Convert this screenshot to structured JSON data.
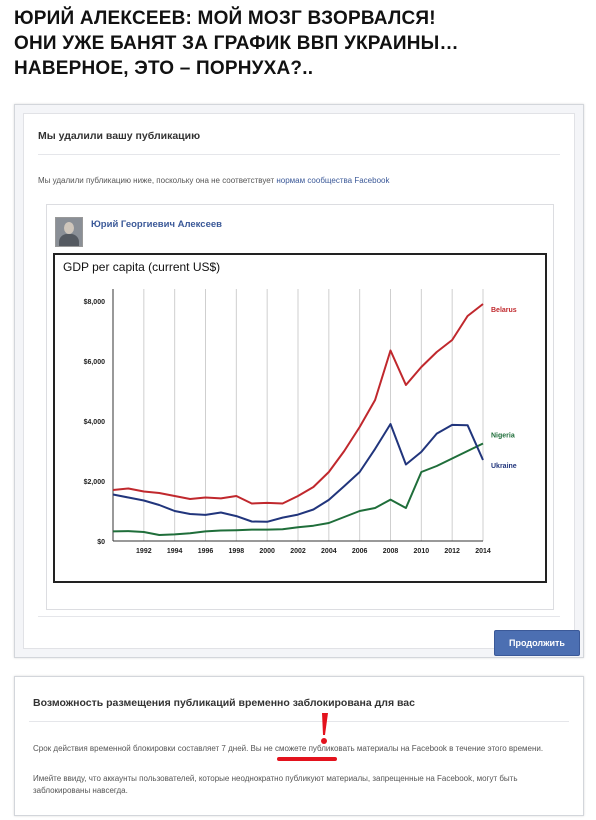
{
  "headline": {
    "line1": "ЮРИЙ АЛЕКСЕЕВ: МОЙ МОЗГ ВЗОРВАЛСЯ!",
    "line2": "ОНИ УЖЕ БАНЯТ ЗА ГРАФИК ВВП УКРАИНЫ…",
    "line3": "НАВЕРНОЕ, ЭТО – ПОРНУХА?.."
  },
  "removed_panel": {
    "title": "Мы удалили вашу публикацию",
    "description": "Мы удалили публикацию ниже, поскольку она не соответствует",
    "description_link": "нормам сообщества Facebook",
    "continue_button": "Продолжить"
  },
  "post": {
    "author": "Юрий Георгиевич Алексеев"
  },
  "chart_data": {
    "type": "line",
    "title": "GDP per capita (current US$)",
    "x": [
      1990,
      1991,
      1992,
      1993,
      1994,
      1995,
      1996,
      1997,
      1998,
      1999,
      2000,
      2001,
      2002,
      2003,
      2004,
      2005,
      2006,
      2007,
      2008,
      2009,
      2010,
      2011,
      2012,
      2013,
      2014
    ],
    "x_ticks": [
      "1992",
      "1994",
      "1996",
      "1998",
      "2000",
      "2002",
      "2004",
      "2006",
      "2008",
      "2010",
      "2012",
      "2014"
    ],
    "y_ticks": [
      "$0",
      "$2,000",
      "$4,000",
      "$6,000",
      "$8,000"
    ],
    "ylim": [
      0,
      8400
    ],
    "grid": "vertical",
    "series": [
      {
        "name": "Belarus",
        "color": "#c0282d",
        "values": [
          1700,
          1750,
          1650,
          1600,
          1500,
          1400,
          1450,
          1420,
          1500,
          1250,
          1270,
          1250,
          1500,
          1800,
          2300,
          3000,
          3800,
          4700,
          6350,
          5200,
          5800,
          6300,
          6700,
          7500,
          7900
        ]
      },
      {
        "name": "Nigeria",
        "color": "#1f6e3a",
        "values": [
          320,
          330,
          300,
          200,
          220,
          260,
          320,
          350,
          360,
          380,
          380,
          390,
          460,
          510,
          600,
          800,
          1000,
          1100,
          1380,
          1100,
          2300,
          2500,
          2750,
          3000,
          3250
        ]
      },
      {
        "name": "Ukraine",
        "color": "#21357c",
        "values": [
          1550,
          1450,
          1350,
          1200,
          1000,
          900,
          870,
          950,
          830,
          650,
          640,
          780,
          880,
          1050,
          1370,
          1830,
          2300,
          3070,
          3900,
          2550,
          2970,
          3580,
          3870,
          3860,
          2700
        ]
      }
    ]
  },
  "blocked_panel": {
    "title": "Возможность размещения публикаций временно заблокирована для вас",
    "text1": "Срок действия временной блокировки составляет 7 дней. Вы не сможете публиковать материалы на Facebook в течение этого времени.",
    "text2": "Имейте ввиду, что аккаунты пользователей, которые неоднократно публикуют материалы, запрещенные на Facebook, могут быть заблокированы навсегда."
  },
  "colors": {
    "accent": "#3b5998",
    "button": "#4c6fb2",
    "annotation": "#e3121d"
  }
}
